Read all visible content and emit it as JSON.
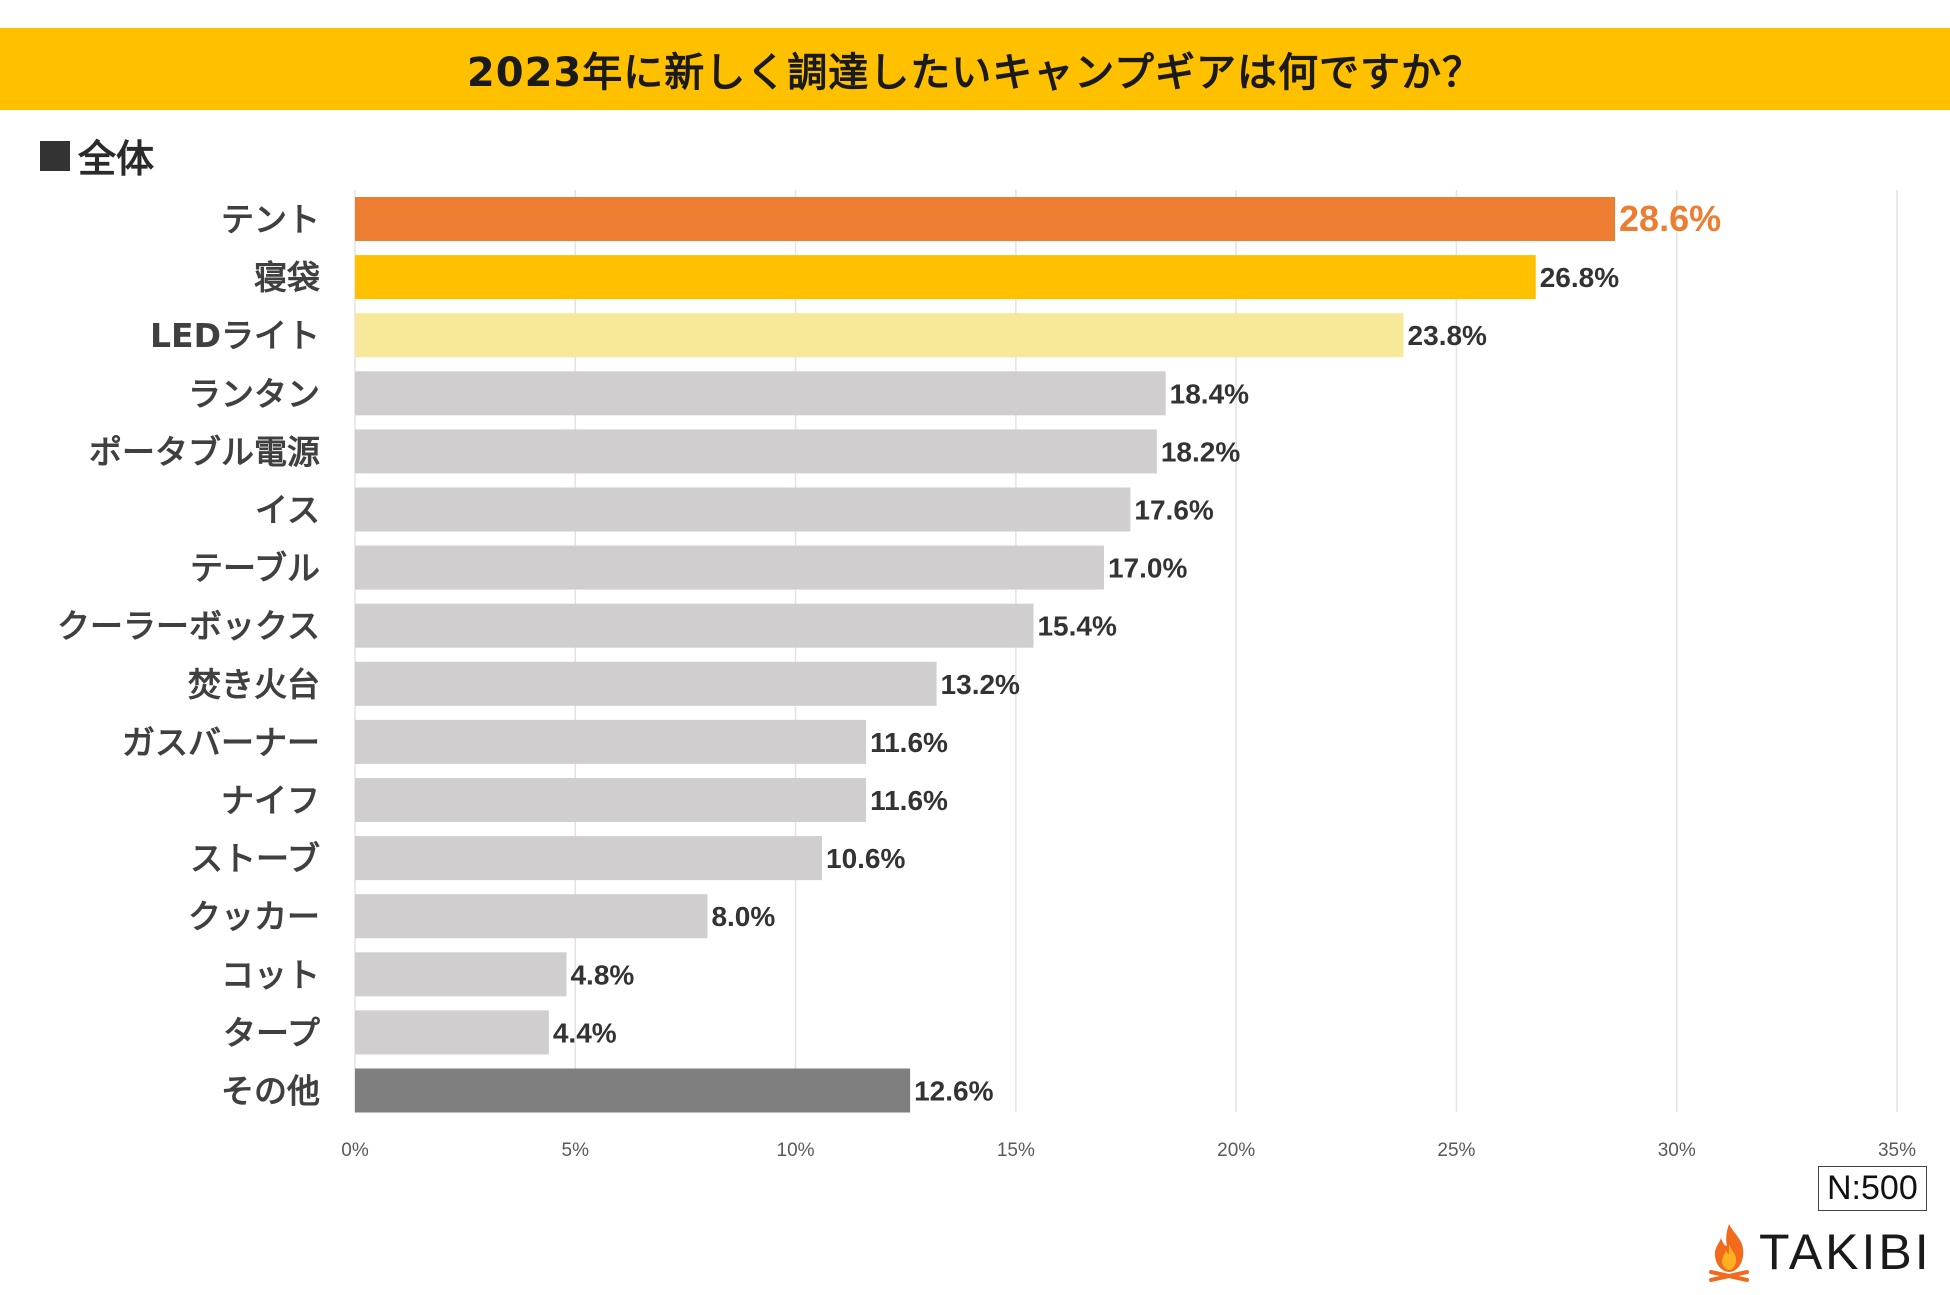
{
  "header": {
    "title": "2023年に新しく調達したいキャンプギアは何ですか？",
    "subtitle": "全体"
  },
  "footer": {
    "sample_size": "N:500",
    "brand": "TAKIBI"
  },
  "colors": {
    "title_bg": "#FFC000",
    "highlight_1": "#ED7D31",
    "highlight_2": "#FFC000",
    "highlight_3": "#F8E99A",
    "default_bar": "#D0CECE",
    "other_bar": "#7F7F7F"
  },
  "chart_data": {
    "type": "bar",
    "orientation": "horizontal",
    "title": "2023年に新しく調達したいキャンプギアは何ですか？",
    "categories": [
      "テント",
      "寝袋",
      "LEDライト",
      "ランタン",
      "ポータブル電源",
      "イス",
      "テーブル",
      "クーラーボックス",
      "焚き火台",
      "ガスバーナー",
      "ナイフ",
      "ストーブ",
      "クッカー",
      "コット",
      "タープ",
      "その他"
    ],
    "values": [
      28.6,
      26.8,
      23.8,
      18.4,
      18.2,
      17.6,
      17.0,
      15.4,
      13.2,
      11.6,
      11.6,
      10.6,
      8.0,
      4.8,
      4.4,
      12.6
    ],
    "value_labels": [
      "28.6%",
      "26.8%",
      "23.8%",
      "18.4%",
      "18.2%",
      "17.6%",
      "17.0%",
      "15.4%",
      "13.2%",
      "11.6%",
      "11.6%",
      "10.6%",
      "8.0%",
      "4.8%",
      "4.4%",
      "12.6%"
    ],
    "bar_colors": [
      "#ED7D31",
      "#FFC000",
      "#F8E99A",
      "#D0CECE",
      "#D0CECE",
      "#D0CECE",
      "#D0CECE",
      "#D0CECE",
      "#D0CECE",
      "#D0CECE",
      "#D0CECE",
      "#D0CECE",
      "#D0CECE",
      "#D0CECE",
      "#D0CECE",
      "#7F7F7F"
    ],
    "label_colors": [
      "#ED7D31",
      "#333333",
      "#333333",
      "#333333",
      "#333333",
      "#333333",
      "#333333",
      "#333333",
      "#333333",
      "#333333",
      "#333333",
      "#333333",
      "#333333",
      "#333333",
      "#333333",
      "#333333"
    ],
    "xlim": [
      0,
      35
    ],
    "xticks": [
      0,
      5,
      10,
      15,
      20,
      25,
      30,
      35
    ],
    "xtick_labels": [
      "0%",
      "5%",
      "10%",
      "15%",
      "20%",
      "25%",
      "30%",
      "35%"
    ],
    "grid": true,
    "legend": "none"
  }
}
